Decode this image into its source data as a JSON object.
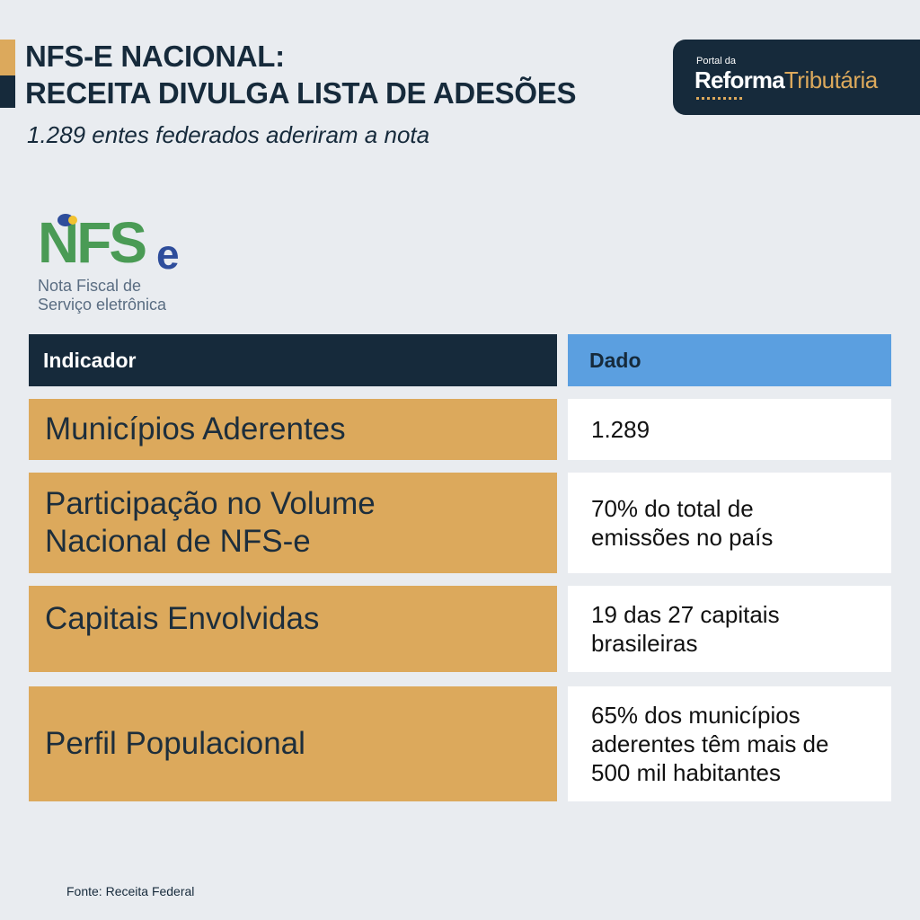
{
  "header": {
    "title_line1": "NFS-E NACIONAL:",
    "title_line2": "RECEITA DIVULGA LISTA DE ADESÕES",
    "subtitle": "1.289 entes federados aderiram a nota"
  },
  "brand_badge": {
    "small_label": "Portal da",
    "name_bold": "Reforma",
    "name_light": "Tributária"
  },
  "nfse_logo": {
    "letters": "NFS",
    "suffix": "e",
    "line1": "Nota Fiscal de",
    "line2": "Serviço eletrônica"
  },
  "table": {
    "headers": {
      "indicator": "Indicador",
      "value": "Dado"
    },
    "rows": [
      {
        "indicator": "Municípios Aderentes",
        "value": "1.289"
      },
      {
        "indicator": "Participação no Volume Nacional de NFS-e",
        "value": "70% do total de emissões no país"
      },
      {
        "indicator": "Capitais Envolvidas",
        "value": "19 das 27 capitais brasileiras"
      },
      {
        "indicator": "Perfil Populacional",
        "value": "65% dos municípios aderentes têm mais de 500 mil habitantes"
      }
    ]
  },
  "source": "Fonte: Receita Federal",
  "colors": {
    "background": "#e9ecf0",
    "navy": "#162a3b",
    "gold": "#dca95c",
    "blue": "#5b9fe0",
    "logo_green": "#4a9b55",
    "logo_blue": "#2e4d9b"
  }
}
